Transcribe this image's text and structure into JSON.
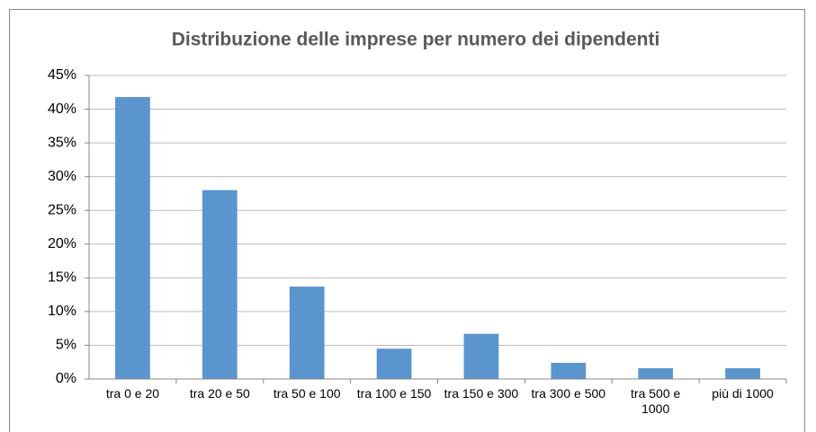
{
  "chart_data": {
    "type": "bar",
    "title": "Distribuzione delle imprese per numero dei dipendenti",
    "categories": [
      "tra 0 e 20",
      "tra 20 e 50",
      "tra 50 e 100",
      "tra 100 e 150",
      "tra 150 e 300",
      "tra 300 e 500",
      "tra 500 e 1000",
      "più di 1000"
    ],
    "values": [
      41.8,
      28,
      13.7,
      4.5,
      6.7,
      2.4,
      1.6,
      1.6
    ],
    "color": "#5b95cd",
    "ylim": [
      0,
      45
    ],
    "yticks": [
      {
        "value": 0,
        "label": "0%"
      },
      {
        "value": 5,
        "label": "5%"
      },
      {
        "value": 10,
        "label": "10%"
      },
      {
        "value": 15,
        "label": "15%"
      },
      {
        "value": 20,
        "label": "20%"
      },
      {
        "value": 25,
        "label": "25%"
      },
      {
        "value": 30,
        "label": "30%"
      },
      {
        "value": 35,
        "label": "35%"
      },
      {
        "value": 40,
        "label": "40%"
      },
      {
        "value": 45,
        "label": "45%"
      }
    ],
    "grid": true
  }
}
